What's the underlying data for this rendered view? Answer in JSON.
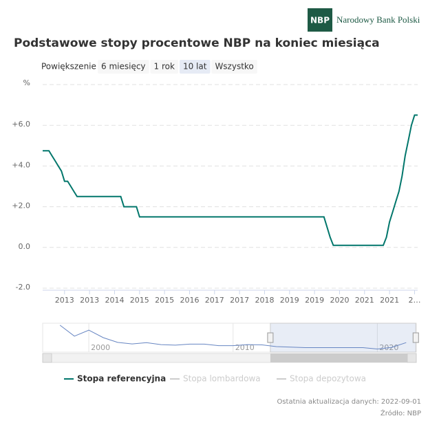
{
  "header": {
    "logo": "NBP",
    "bank_name": "Narodowy Bank Polski"
  },
  "range_selector": {
    "label": "Powiększenie",
    "buttons": [
      "6 miesięcy",
      "1 rok",
      "10 lat",
      "Wszystko"
    ],
    "selected": 2
  },
  "chart_data": {
    "type": "line",
    "title": "Podstawowe stopy procentowe NBP na koniec miesiąca",
    "y_label": "%",
    "x": [
      "2012-08",
      "2012-10",
      "2012-11",
      "2012-12",
      "2013-01",
      "2013-02",
      "2013-03",
      "2013-04",
      "2013-05",
      "2013-06",
      "2013-07",
      "2014-09",
      "2014-10",
      "2015-02",
      "2015-03",
      "2020-02",
      "2020-03",
      "2020-04",
      "2020-05",
      "2021-09",
      "2021-10",
      "2021-11",
      "2021-12",
      "2022-01",
      "2022-02",
      "2022-03",
      "2022-04",
      "2022-05",
      "2022-06",
      "2022-07",
      "2022-08"
    ],
    "series": [
      {
        "name": "Stopa referencyjna",
        "color": "#00766b",
        "values": [
          4.75,
          4.75,
          4.5,
          4.25,
          4.0,
          3.75,
          3.25,
          3.25,
          3.0,
          2.75,
          2.5,
          2.5,
          2.0,
          2.0,
          1.5,
          1.5,
          1.0,
          0.5,
          0.1,
          0.1,
          0.5,
          1.25,
          1.75,
          2.25,
          2.75,
          3.5,
          4.5,
          5.25,
          6.0,
          6.5,
          6.5
        ]
      },
      {
        "name": "Stopa lombardowa",
        "color": "#cccccc",
        "visible": false
      },
      {
        "name": "Stopa depozytowa",
        "color": "#cccccc",
        "visible": false
      }
    ],
    "xlim": [
      "2012-08",
      "2022-08"
    ],
    "xticks": [
      {
        "value": "2013-03",
        "label": "2013"
      },
      {
        "value": "2013-11",
        "label": "2013"
      },
      {
        "value": "2014-07",
        "label": "2014"
      },
      {
        "value": "2015-03",
        "label": "2015"
      },
      {
        "value": "2015-11",
        "label": "2015"
      },
      {
        "value": "2016-07",
        "label": "2016"
      },
      {
        "value": "2017-03",
        "label": "2017"
      },
      {
        "value": "2017-11",
        "label": "2017"
      },
      {
        "value": "2018-07",
        "label": "2018"
      },
      {
        "value": "2019-03",
        "label": "2019"
      },
      {
        "value": "2019-11",
        "label": "2019"
      },
      {
        "value": "2020-07",
        "label": "2020"
      },
      {
        "value": "2021-03",
        "label": "2021"
      },
      {
        "value": "2021-11",
        "label": "2021"
      },
      {
        "value": "2022-07",
        "label": "2…"
      }
    ],
    "ylim": [
      -2,
      8
    ],
    "yticks": [
      {
        "value": -2,
        "label": "-2.0"
      },
      {
        "value": 0,
        "label": "0.0"
      },
      {
        "value": 2,
        "label": "+2.0"
      },
      {
        "value": 4,
        "label": "+4.0"
      },
      {
        "value": 6,
        "label": "+6.0"
      },
      {
        "value": 8,
        "label": null
      }
    ],
    "grid": true,
    "legend": "bottom"
  },
  "navigator": {
    "x": [
      1998,
      1999,
      2000,
      2001,
      2002,
      2003,
      2004,
      2005,
      2006,
      2007,
      2008,
      2009,
      2010,
      2011,
      2012,
      2013,
      2014,
      2015,
      2016,
      2017,
      2018,
      2019,
      2020,
      2021,
      2022
    ],
    "values": [
      24,
      13,
      19,
      11.5,
      6.75,
      5.25,
      6.5,
      4.5,
      4,
      5,
      5,
      3.5,
      3.5,
      4.5,
      4.25,
      2.5,
      2,
      1.5,
      1.5,
      1.5,
      1.5,
      1.5,
      0.1,
      1.75,
      6.5
    ],
    "xlim": [
      1996.8,
      2022.7
    ],
    "ylim": [
      -3,
      26
    ],
    "xticks": [
      2000,
      2010,
      2020
    ]
  },
  "footer": {
    "updated": "Ostatnia aktualizacja danych: 2022-09-01",
    "source": "Źródło: NBP"
  }
}
